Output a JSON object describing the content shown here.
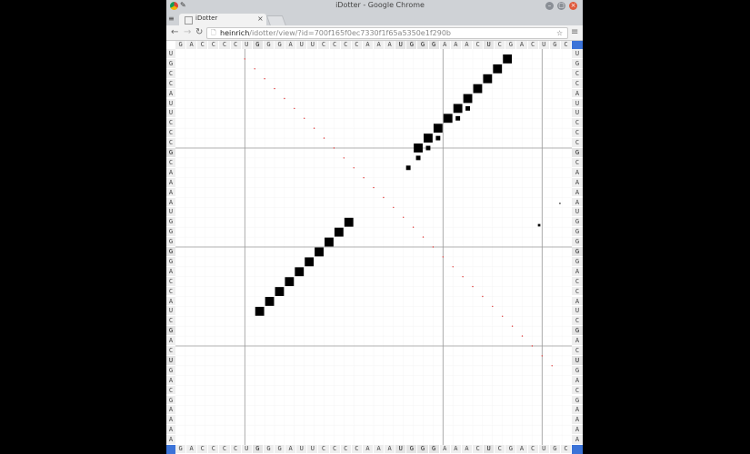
{
  "window": {
    "title": "iDotter - Google Chrome",
    "tab_title": "iDotter",
    "tab_close": "×",
    "app_icon": "≡",
    "minimize": "–",
    "maximize": "▢",
    "close": "×"
  },
  "toolbar": {
    "back": "←",
    "forward": "→",
    "reload": "↻",
    "url_host": "heinrich",
    "url_path": "/idotter/view/?id=700f165f0ec7330f1f65a5350e1f290b",
    "star": "☆",
    "menu": "≡",
    "page_icon": "🗋"
  },
  "sequence_x": [
    "G",
    "A",
    "C",
    "C",
    "C",
    "C",
    "U",
    "G",
    "G",
    "G",
    "A",
    "U",
    "U",
    "C",
    "C",
    "C",
    "C",
    "A",
    "A",
    "A",
    "U",
    "G",
    "G",
    "G",
    "A",
    "A",
    "A",
    "C",
    "U",
    "C",
    "G",
    "A",
    "C",
    "U",
    "G",
    "C"
  ],
  "sequence_x_highlight": [
    7,
    20,
    21,
    22,
    23,
    28
  ],
  "sequence_y": [
    "U",
    "G",
    "C",
    "C",
    "A",
    "U",
    "U",
    "C",
    "C",
    "C",
    "G",
    "C",
    "A",
    "A",
    "A",
    "A",
    "U",
    "G",
    "G",
    "G",
    "G",
    "G",
    "A",
    "C",
    "C",
    "A",
    "U",
    "C",
    "G",
    "A",
    "C",
    "U",
    "G",
    "A",
    "C",
    "G",
    "A",
    "A",
    "A",
    "A"
  ],
  "sequence_y_highlight": [
    10,
    20,
    28,
    31
  ],
  "chart_data": {
    "type": "scatter",
    "xlabel": "",
    "ylabel": "",
    "grid_major_columns": [
      7,
      27,
      37
    ],
    "grid_major_rows": [
      10,
      20,
      30
    ],
    "diagonal_red_dots": [
      [
        7,
        1
      ],
      [
        8,
        2
      ],
      [
        9,
        3
      ],
      [
        10,
        4
      ],
      [
        11,
        5
      ],
      [
        12,
        6
      ],
      [
        13,
        7
      ],
      [
        14,
        8
      ],
      [
        15,
        9
      ],
      [
        16,
        10
      ],
      [
        17,
        11
      ],
      [
        18,
        12
      ],
      [
        19,
        13
      ],
      [
        20,
        14
      ],
      [
        21,
        15
      ],
      [
        22,
        16
      ],
      [
        23,
        17
      ],
      [
        24,
        18
      ],
      [
        25,
        19
      ],
      [
        26,
        20
      ],
      [
        27,
        21
      ],
      [
        28,
        22
      ],
      [
        29,
        23
      ],
      [
        30,
        24
      ],
      [
        31,
        25
      ],
      [
        32,
        26
      ],
      [
        33,
        27
      ],
      [
        34,
        28
      ],
      [
        35,
        29
      ],
      [
        36,
        30
      ],
      [
        37,
        31
      ],
      [
        38,
        32
      ]
    ],
    "squares_lower": [
      [
        8.5,
        26.5,
        0.9
      ],
      [
        9.5,
        25.5,
        0.9
      ],
      [
        10.5,
        24.5,
        0.9
      ],
      [
        11.5,
        23.5,
        0.9
      ],
      [
        12.5,
        22.5,
        0.9
      ],
      [
        13.5,
        21.5,
        0.9
      ],
      [
        14.5,
        20.5,
        0.9
      ],
      [
        15.5,
        19.5,
        0.9
      ],
      [
        16.5,
        18.5,
        0.9
      ],
      [
        17.5,
        17.5,
        0.9
      ]
    ],
    "squares_upper": [
      [
        24.5,
        10,
        0.9
      ],
      [
        25.5,
        9,
        0.9
      ],
      [
        26.5,
        8,
        0.9
      ],
      [
        27.5,
        7,
        0.9
      ],
      [
        28.5,
        6,
        0.9
      ],
      [
        29.5,
        5,
        0.9
      ],
      [
        30.5,
        4,
        0.9
      ],
      [
        31.5,
        3,
        0.9
      ],
      [
        32.5,
        2,
        0.9
      ],
      [
        33.5,
        1,
        0.9
      ]
    ],
    "small_squares": [
      [
        23.5,
        12,
        0.45
      ],
      [
        24.5,
        11,
        0.45
      ],
      [
        25.5,
        10,
        0.45
      ],
      [
        26.5,
        9,
        0.45
      ],
      [
        28.5,
        7,
        0.45
      ],
      [
        29.5,
        6,
        0.45
      ],
      [
        36.7,
        17.8,
        0.25
      ]
    ],
    "tiny_dots": [
      [
        38.8,
        15.6,
        0.12
      ]
    ]
  }
}
